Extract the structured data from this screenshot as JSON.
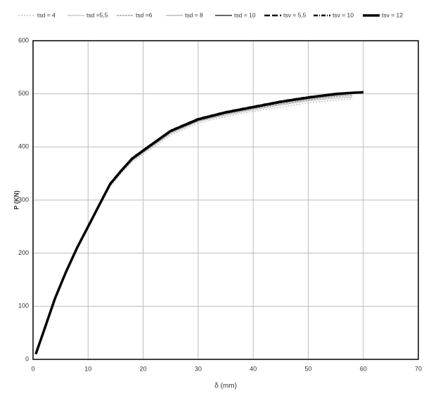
{
  "chart_data": {
    "type": "line",
    "x_label": "δ (mm)",
    "y_label": "P (KN)",
    "x": [
      0.5,
      2,
      4,
      6,
      8,
      10,
      12,
      14,
      16,
      18,
      20,
      25,
      30,
      35,
      40,
      45,
      50,
      55,
      58,
      60
    ],
    "series": [
      {
        "name": "tsd = 4",
        "color": "#aaaaaa",
        "width": 1,
        "dash": "2,2",
        "values": [
          10,
          53,
          113,
          163,
          207,
          247,
          287,
          325,
          350,
          372,
          386,
          422,
          445,
          457,
          467,
          475,
          483,
          488,
          490,
          null
        ]
      },
      {
        "name": "tsd =5,5",
        "color": "#b0b0b0",
        "width": 1,
        "dash": "",
        "values": [
          10,
          54,
          114,
          164,
          208,
          248,
          288,
          327,
          352,
          374,
          389,
          425,
          448,
          460,
          470,
          479,
          487,
          492,
          494,
          null
        ]
      },
      {
        "name": "tsd =6",
        "color": "#777777",
        "width": 1,
        "dash": "3,1",
        "values": [
          10,
          54,
          114,
          164,
          209,
          249,
          289,
          328,
          353,
          375,
          390,
          427,
          449,
          462,
          472,
          481,
          489,
          495,
          497,
          null
        ]
      },
      {
        "name": "tsd = 8",
        "color": "#bbbbbb",
        "width": 1.5,
        "dash": "",
        "values": [
          10,
          55,
          115,
          165,
          209,
          249,
          289,
          329,
          354,
          376,
          391,
          428,
          450,
          463,
          473,
          483,
          491,
          497,
          500,
          null
        ]
      },
      {
        "name": "tsd = 10",
        "color": "#666666",
        "width": 2,
        "dash": "",
        "values": [
          10,
          55,
          115,
          165,
          210,
          250,
          290,
          330,
          355,
          377,
          392,
          429,
          451,
          464,
          474,
          484,
          492,
          498,
          501,
          502
        ]
      },
      {
        "name": "tsv = 5,5",
        "color": "#111111",
        "width": 2.5,
        "dash": "8,3",
        "values": [
          10,
          55,
          115,
          165,
          210,
          250,
          290,
          330,
          355,
          378,
          393,
          430,
          452,
          465,
          475,
          485,
          493,
          499,
          502,
          503
        ]
      },
      {
        "name": "tsv = 10",
        "color": "#000000",
        "width": 2.5,
        "dash": "6,2,1,2",
        "values": [
          10,
          55,
          115,
          165,
          210,
          250,
          291,
          331,
          356,
          379,
          394,
          431,
          453,
          466,
          476,
          486,
          494,
          500,
          502,
          503
        ]
      },
      {
        "name": "tsv = 12",
        "color": "#000000",
        "width": 3.5,
        "dash": "",
        "values": [
          10,
          55,
          115,
          165,
          210,
          250,
          290,
          330,
          355,
          378,
          393,
          430,
          452,
          465,
          475,
          485,
          493,
          500,
          502,
          503
        ]
      }
    ],
    "xlim": [
      0,
      70
    ],
    "xticks": [
      0,
      10,
      20,
      30,
      40,
      50,
      60,
      70
    ],
    "ylim": [
      0,
      600
    ],
    "yticks": [
      0,
      100,
      200,
      300,
      400,
      500,
      600
    ],
    "grid": true,
    "legend": "top"
  }
}
